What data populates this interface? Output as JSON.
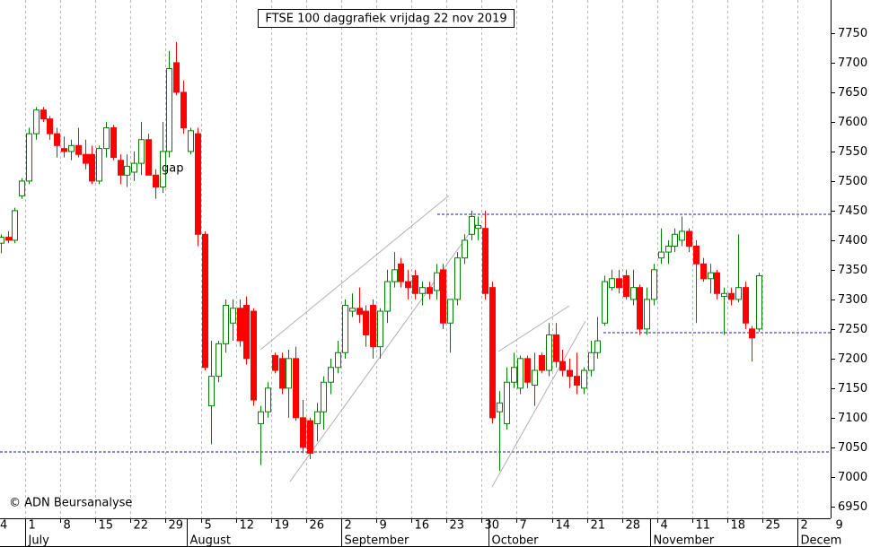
{
  "chart_data": {
    "type": "candlestick",
    "title": "FTSE 100 daggrafiek vrijdag 22 nov 2019",
    "annotations": [
      "gap",
      "© ADN Beursanalyse"
    ],
    "up_color": "#008000",
    "down_color": "#ff0000",
    "grid": true,
    "categories": [
      null,
      null,
      null,
      null,
      null,
      null,
      null,
      null,
      null,
      null,
      null,
      null,
      null,
      null,
      null,
      null,
      null,
      null,
      null,
      null,
      null,
      null,
      null,
      null,
      null,
      null,
      null,
      null,
      null,
      null,
      null,
      null,
      null,
      null,
      null,
      null,
      null,
      null,
      null,
      null,
      null,
      null,
      null,
      null,
      null,
      null,
      null,
      null,
      null,
      null,
      null,
      null,
      null,
      null,
      null,
      null,
      null,
      null,
      null,
      null,
      null,
      null,
      null,
      null,
      null,
      null,
      null,
      null,
      null,
      null,
      null,
      null,
      null,
      null,
      null,
      null,
      null,
      null,
      null,
      null,
      null,
      null,
      null,
      null,
      null,
      null,
      null,
      null,
      null,
      null,
      null,
      null,
      null,
      null,
      null,
      null,
      null,
      null,
      null,
      null,
      null,
      null,
      null,
      null,
      null,
      null,
      null,
      null,
      null
    ],
    "open": [
      7395,
      7405,
      7400,
      7475,
      7500,
      7580,
      7620,
      7605,
      7580,
      7555,
      7550,
      7560,
      7545,
      7545,
      7500,
      7555,
      7590,
      7535,
      7510,
      7515,
      7530,
      7570,
      7510,
      7490,
      7550,
      7700,
      7650,
      7550,
      7580,
      7410,
      7120,
      7170,
      7225,
      7260,
      7285,
      7290,
      7280,
      7090,
      7110,
      7205,
      7200,
      7150,
      7200,
      7100,
      7095,
      7090,
      7110,
      7160,
      7185,
      7210,
      7280,
      7285,
      7280,
      7290,
      7220,
      7280,
      7330,
      7360,
      7330,
      7340,
      7310,
      7320,
      7315,
      7350,
      7260,
      7300,
      7370,
      7410,
      7420,
      7420,
      7320,
      7110,
      7090,
      7160,
      7150,
      7200,
      7155,
      7205,
      7180,
      7240,
      7195,
      7180,
      7170,
      7150,
      7180,
      7210,
      7260,
      7320,
      7335,
      7340,
      7300,
      7320,
      7250,
      7300,
      7370,
      7380,
      7390,
      7400,
      7415,
      7390,
      7360,
      7335,
      7345,
      7305,
      7310,
      7300,
      7320,
      7250,
      7250
    ],
    "high": [
      7410,
      7415,
      7455,
      7505,
      7590,
      7625,
      7625,
      7610,
      7590,
      7575,
      7570,
      7590,
      7570,
      7560,
      7560,
      7600,
      7595,
      7545,
      7545,
      7550,
      7600,
      7580,
      7520,
      7600,
      7720,
      7735,
      7670,
      7590,
      7590,
      7415,
      7230,
      7230,
      7300,
      7300,
      7300,
      7305,
      7285,
      7120,
      7160,
      7210,
      7210,
      7215,
      7220,
      7130,
      7100,
      7125,
      7170,
      7200,
      7230,
      7300,
      7310,
      7320,
      7290,
      7300,
      7285,
      7350,
      7380,
      7370,
      7350,
      7350,
      7330,
      7330,
      7360,
      7360,
      7300,
      7380,
      7410,
      7450,
      7440,
      7450,
      7330,
      7145,
      7185,
      7210,
      7205,
      7205,
      7210,
      7210,
      7260,
      7260,
      7215,
      7200,
      7210,
      7185,
      7230,
      7270,
      7340,
      7350,
      7350,
      7350,
      7350,
      7325,
      7320,
      7360,
      7420,
      7400,
      7420,
      7440,
      7420,
      7400,
      7370,
      7360,
      7350,
      7320,
      7320,
      7410,
      7330,
      7255,
      7345
    ],
    "low": [
      7378,
      7395,
      7395,
      7470,
      7495,
      7570,
      7600,
      7570,
      7540,
      7540,
      7535,
      7540,
      7520,
      7495,
      7495,
      7540,
      7535,
      7495,
      7490,
      7500,
      7510,
      7510,
      7470,
      7480,
      7540,
      7645,
      7580,
      7545,
      7390,
      7180,
      7055,
      7160,
      7210,
      7230,
      7220,
      7190,
      7120,
      7020,
      7100,
      7175,
      7140,
      7100,
      7095,
      7040,
      7030,
      7060,
      7080,
      7140,
      7175,
      7200,
      7270,
      7260,
      7220,
      7200,
      7200,
      7260,
      7320,
      7320,
      7300,
      7300,
      7290,
      7300,
      7300,
      7250,
      7210,
      7290,
      7360,
      7400,
      7400,
      7300,
      7090,
      7010,
      7080,
      7150,
      7140,
      7150,
      7120,
      7175,
      7170,
      7185,
      7170,
      7150,
      7140,
      7140,
      7170,
      7200,
      7255,
      7315,
      7310,
      7300,
      7290,
      7240,
      7240,
      7290,
      7360,
      7360,
      7380,
      7390,
      7380,
      7260,
      7330,
      7310,
      7300,
      7240,
      7290,
      7295,
      7250,
      7195,
      7245
    ],
    "close": [
      7405,
      7400,
      7450,
      7500,
      7580,
      7620,
      7605,
      7580,
      7560,
      7550,
      7560,
      7545,
      7530,
      7500,
      7555,
      7590,
      7540,
      7510,
      7525,
      7530,
      7570,
      7510,
      7490,
      7550,
      7690,
      7650,
      7590,
      7585,
      7410,
      7185,
      7170,
      7225,
      7290,
      7285,
      7230,
      7200,
      7130,
      7110,
      7150,
      7180,
      7150,
      7200,
      7100,
      7050,
      7040,
      7110,
      7160,
      7185,
      7210,
      7290,
      7285,
      7275,
      7240,
      7220,
      7280,
      7330,
      7350,
      7330,
      7320,
      7310,
      7320,
      7310,
      7345,
      7260,
      7300,
      7370,
      7400,
      7440,
      7425,
      7310,
      7100,
      7125,
      7160,
      7185,
      7200,
      7160,
      7180,
      7180,
      7240,
      7195,
      7180,
      7170,
      7155,
      7180,
      7210,
      7230,
      7330,
      7335,
      7320,
      7305,
      7320,
      7250,
      7300,
      7350,
      7380,
      7390,
      7410,
      7415,
      7390,
      7360,
      7335,
      7345,
      7310,
      7310,
      7300,
      7320,
      7260,
      7235,
      7340
    ],
    "xticks": [
      {
        "value": -1,
        "label": "4"
      },
      {
        "value": 4,
        "label": "1"
      },
      {
        "value": 9,
        "label": "8"
      },
      {
        "value": 14,
        "label": "15"
      },
      {
        "value": 19,
        "label": "22"
      },
      {
        "value": 24,
        "label": "29"
      },
      {
        "value": 29,
        "label": "5"
      },
      {
        "value": 34,
        "label": "12"
      },
      {
        "value": 39,
        "label": "19"
      },
      {
        "value": 44,
        "label": "26"
      },
      {
        "value": 49,
        "label": "2"
      },
      {
        "value": 54,
        "label": "9"
      },
      {
        "value": 59,
        "label": "16"
      },
      {
        "value": 64,
        "label": "23"
      },
      {
        "value": 69,
        "label": "30"
      },
      {
        "value": 74,
        "label": "7"
      },
      {
        "value": 79,
        "label": "14"
      },
      {
        "value": 84,
        "label": "21"
      },
      {
        "value": 89,
        "label": "28"
      },
      {
        "value": 94,
        "label": "4"
      },
      {
        "value": 99,
        "label": "11"
      },
      {
        "value": 104,
        "label": "18"
      },
      {
        "value": 109,
        "label": "25"
      },
      {
        "value": 114,
        "label": "2"
      },
      {
        "value": 119,
        "label": "9"
      }
    ],
    "month_ticks": [
      {
        "value": 4,
        "label": "July"
      },
      {
        "value": 27,
        "label": "August"
      },
      {
        "value": 49,
        "label": "September"
      },
      {
        "value": 70,
        "label": "October"
      },
      {
        "value": 93,
        "label": "November"
      },
      {
        "value": 114,
        "label": "Decem"
      }
    ],
    "ylim": [
      6930,
      7806
    ],
    "yticks": [
      6950,
      7000,
      7050,
      7100,
      7150,
      7200,
      7250,
      7300,
      7350,
      7400,
      7450,
      7500,
      7550,
      7600,
      7650,
      7700,
      7750
    ]
  }
}
